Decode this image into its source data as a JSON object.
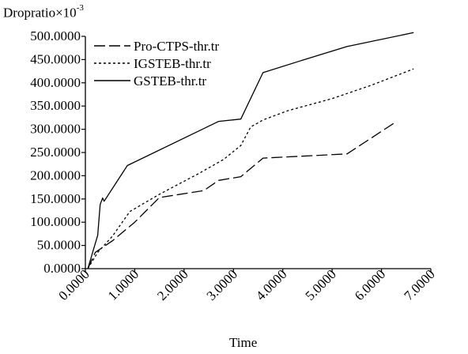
{
  "chart_data": {
    "type": "line",
    "title": "",
    "ylabel_base": "Dropratio×10",
    "ylabel_exp": "-3",
    "xlabel": "Time",
    "xlim": [
      0,
      7
    ],
    "ylim": [
      0,
      500
    ],
    "x_ticks": [
      0,
      1,
      2,
      3,
      4,
      5,
      6,
      7
    ],
    "x_tick_labels": [
      "0.0000",
      "1.0000",
      "2.0000",
      "3.0000",
      "4.0000",
      "5.0000",
      "6.0000",
      "7.0000"
    ],
    "y_ticks": [
      0,
      50,
      100,
      150,
      200,
      250,
      300,
      350,
      400,
      450,
      500
    ],
    "y_tick_labels": [
      "0.0000",
      "50.0000",
      "100.0000",
      "150.0000",
      "200.0000",
      "250.0000",
      "300.0000",
      "350.0000",
      "400.0000",
      "450.0000",
      "500.0000"
    ],
    "grid": false,
    "legend_position": "top-left",
    "series": [
      {
        "name": "Pro-CTPS-thr.tr",
        "dash": "long-dash",
        "color": "#000000",
        "points": [
          [
            0.05,
            0
          ],
          [
            0.2,
            35
          ],
          [
            0.55,
            60
          ],
          [
            1.0,
            100
          ],
          [
            1.5,
            153
          ],
          [
            2.4,
            168
          ],
          [
            2.7,
            190
          ],
          [
            3.15,
            198
          ],
          [
            3.6,
            238
          ],
          [
            5.3,
            247
          ],
          [
            6.25,
            313
          ]
        ]
      },
      {
        "name": "IGSTEB-thr.tr",
        "dash": "dotted",
        "color": "#000000",
        "points": [
          [
            0.05,
            0
          ],
          [
            0.25,
            35
          ],
          [
            0.55,
            70
          ],
          [
            0.9,
            123
          ],
          [
            1.5,
            160
          ],
          [
            2.3,
            205
          ],
          [
            2.8,
            235
          ],
          [
            3.15,
            265
          ],
          [
            3.35,
            305
          ],
          [
            3.6,
            320
          ],
          [
            4.1,
            340
          ],
          [
            5.0,
            366
          ],
          [
            5.8,
            395
          ],
          [
            6.65,
            430
          ]
        ]
      },
      {
        "name": "GSTEB-thr.tr",
        "dash": "solid",
        "color": "#000000",
        "points": [
          [
            0.05,
            0
          ],
          [
            0.25,
            72
          ],
          [
            0.3,
            138
          ],
          [
            0.35,
            152
          ],
          [
            0.38,
            145
          ],
          [
            0.85,
            222
          ],
          [
            2.7,
            317
          ],
          [
            3.15,
            322
          ],
          [
            3.6,
            422
          ],
          [
            4.5,
            452
          ],
          [
            5.3,
            478
          ],
          [
            6.65,
            508
          ]
        ]
      }
    ]
  }
}
